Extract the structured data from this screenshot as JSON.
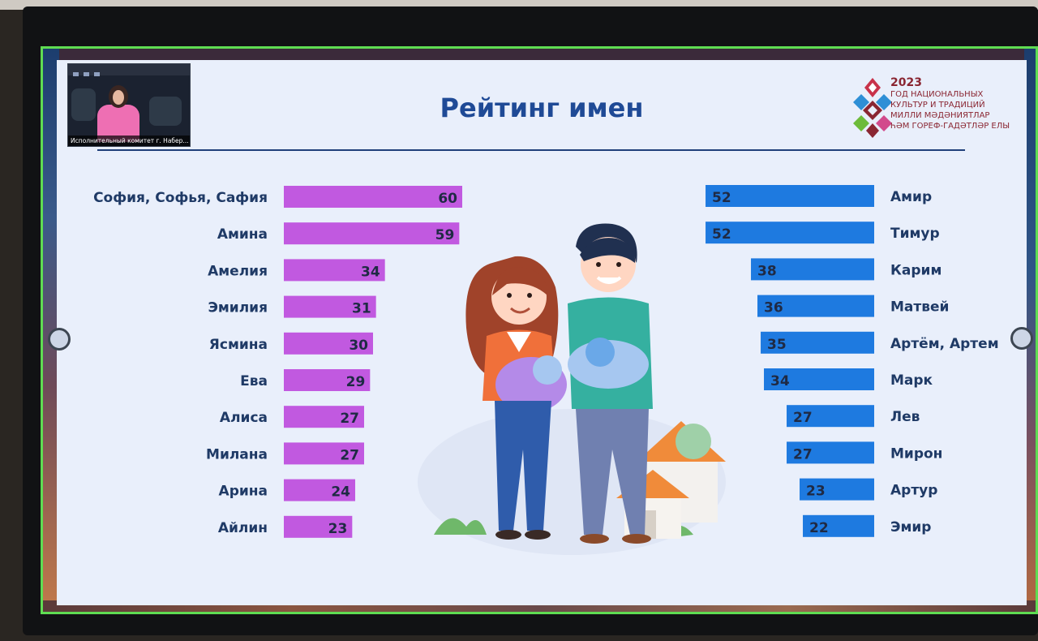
{
  "slide": {
    "title": "Рейтинг имен",
    "video_caption": "Исполнительный комитет г. Набер..."
  },
  "logo": {
    "year": "2023",
    "lines": [
      "ГОД НАЦИОНАЛЬНЫХ",
      "КУЛЬТУР И ТРАДИЦИЙ",
      "МИЛЛИ МӘДӘНИЯТЛАР",
      "ҺӘМ ГОРЕФ-ГАДӘТЛӘР ЕЛЫ"
    ]
  },
  "colors": {
    "girls_bar": "#c159e0",
    "boys_bar": "#1e7ae0",
    "title": "#1f4a96"
  },
  "chart_data": [
    {
      "type": "bar",
      "orientation": "horizontal",
      "categories": [
        "София, Софья, Сафия",
        "Амина",
        "Амелия",
        "Эмилия",
        "Ясмина",
        "Ева",
        "Алиса",
        "Милана",
        "Арина",
        "Айлин"
      ],
      "values": [
        60,
        59,
        34,
        31,
        30,
        29,
        27,
        27,
        24,
        23
      ],
      "title": "",
      "xlabel": "",
      "ylabel": "",
      "xlim": [
        0,
        60
      ],
      "grid": false,
      "color": "#c159e0"
    },
    {
      "type": "bar",
      "orientation": "horizontal",
      "categories": [
        "Амир",
        "Тимур",
        "Карим",
        "Матвей",
        "Артём, Артем",
        "Марк",
        "Лев",
        "Мирон",
        "Артур",
        "Эмир"
      ],
      "values": [
        52,
        52,
        38,
        36,
        35,
        34,
        27,
        27,
        23,
        22
      ],
      "title": "",
      "xlabel": "",
      "ylabel": "",
      "xlim": [
        0,
        60
      ],
      "grid": false,
      "color": "#1e7ae0"
    }
  ]
}
